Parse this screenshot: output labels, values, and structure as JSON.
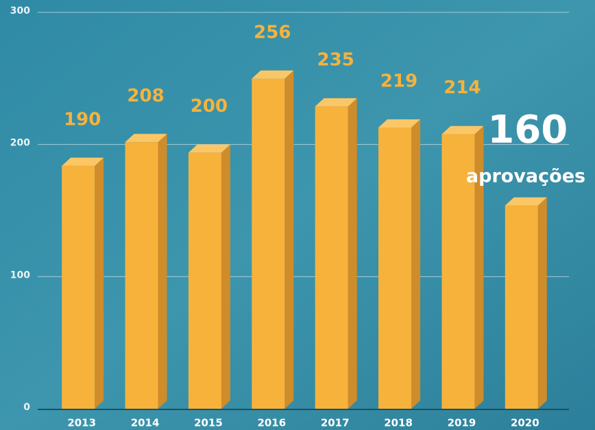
{
  "chart_data": {
    "type": "bar3d",
    "categories": [
      "2013",
      "2014",
      "2015",
      "2016",
      "2017",
      "2018",
      "2019",
      "2020"
    ],
    "values": [
      190,
      208,
      200,
      256,
      235,
      219,
      214,
      160
    ],
    "color": "#f7b23b",
    "ylim": [
      0,
      300
    ],
    "yticks": [
      0,
      100,
      200,
      300
    ],
    "grid": true,
    "annotation": "aprovações"
  }
}
